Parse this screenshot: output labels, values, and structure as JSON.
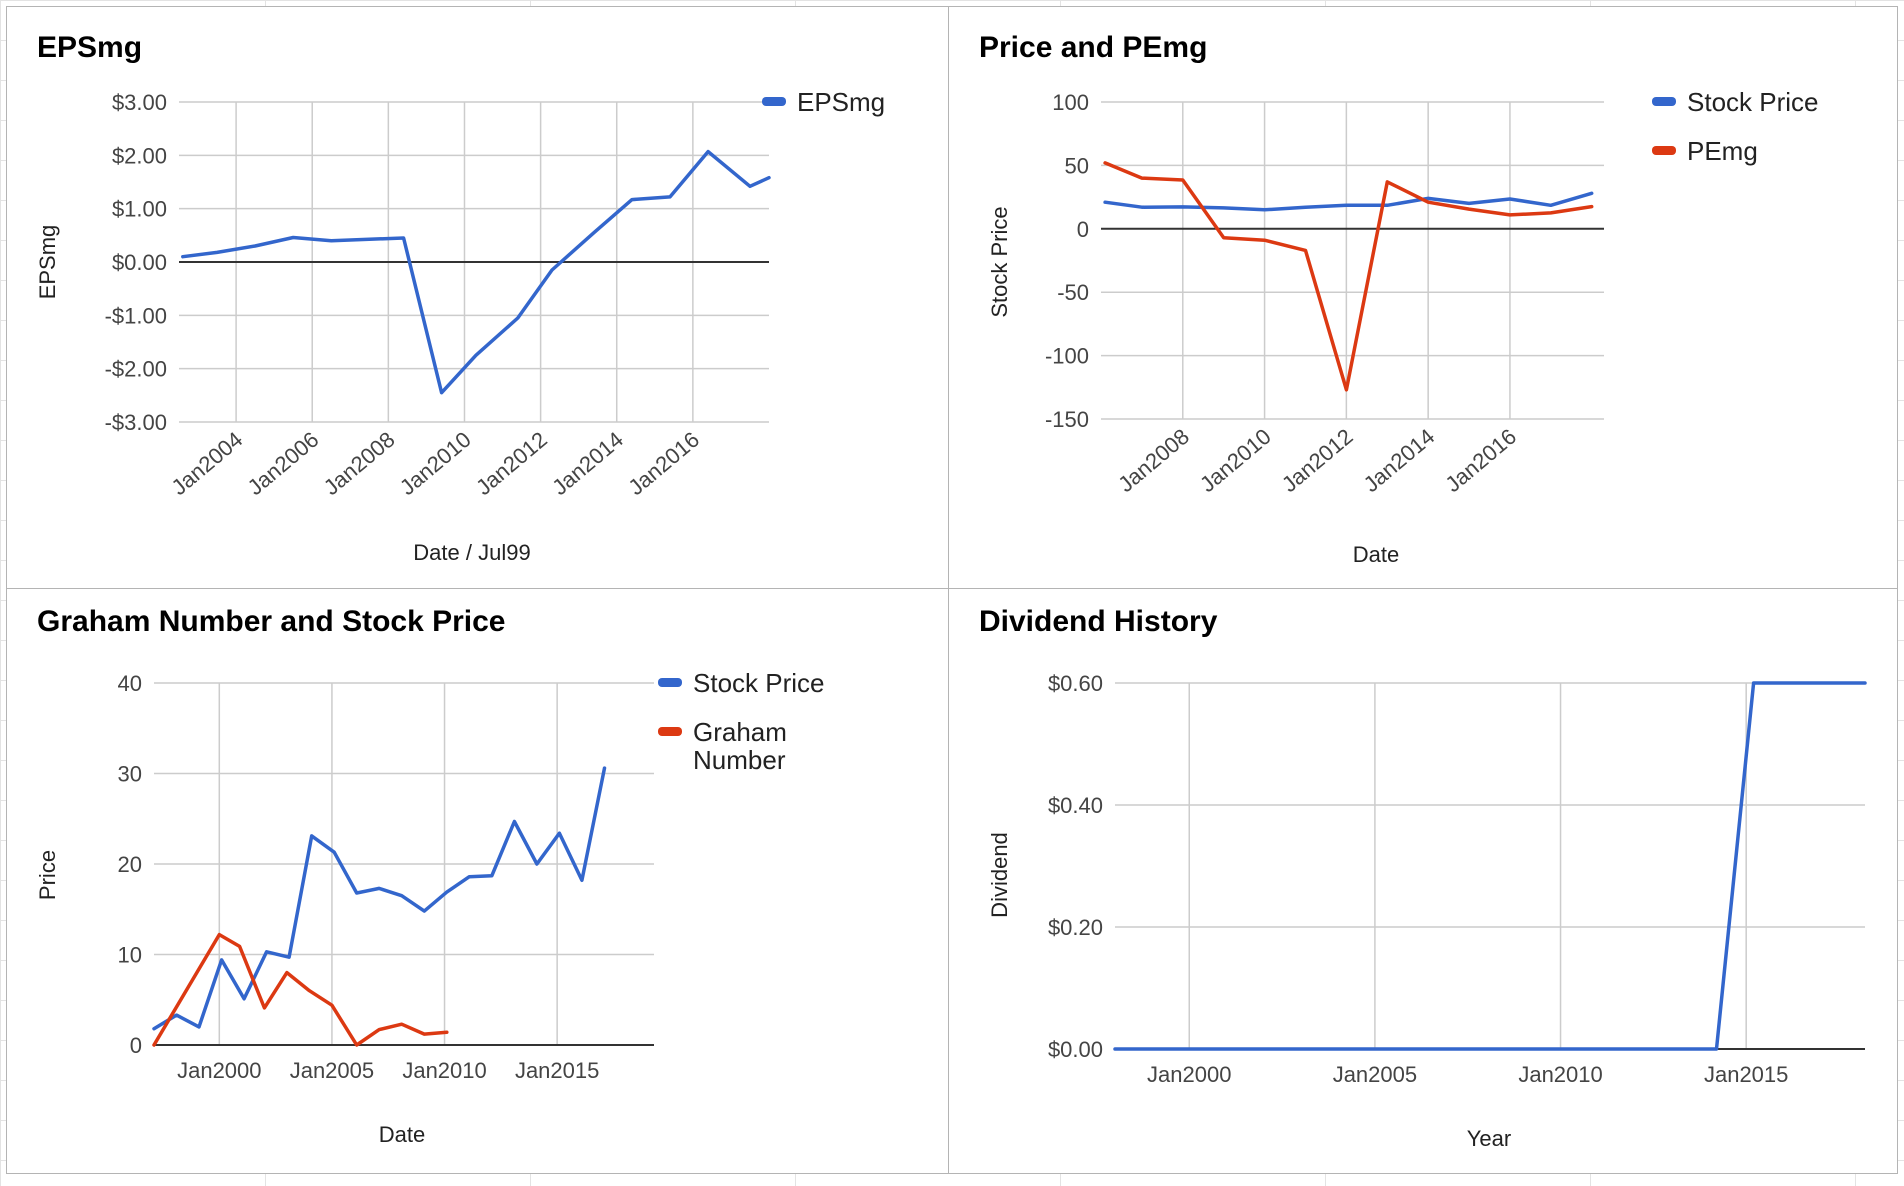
{
  "charts": [
    {
      "title": "EPSmg",
      "chart_data": {
        "type": "line",
        "title": "EPSmg",
        "xlabel": "Date / Jul99",
        "ylabel": "EPSmg",
        "x_ticks": [
          "Jan2004",
          "Jan2006",
          "Jan2008",
          "Jan2010",
          "Jan2012",
          "Jan2014",
          "Jan2016"
        ],
        "y_ticks": [
          "-$3.00",
          "-$2.00",
          "-$1.00",
          "$0.00",
          "$1.00",
          "$2.00",
          "$3.00"
        ],
        "ylim": [
          -3,
          3
        ],
        "xlim": [
          2002.5,
          2018
        ],
        "grid": true,
        "legend_position": "right",
        "series": [
          {
            "name": "EPSmg",
            "color": "#3366cc",
            "points": [
              [
                2002.6,
                0.1
              ],
              [
                2003.5,
                0.18
              ],
              [
                2004.5,
                0.3
              ],
              [
                2005.5,
                0.46
              ],
              [
                2006.5,
                0.4
              ],
              [
                2008.4,
                0.45
              ],
              [
                2009.4,
                -2.45
              ],
              [
                2010.3,
                -1.75
              ],
              [
                2011.4,
                -1.05
              ],
              [
                2012.3,
                -0.15
              ],
              [
                2013.4,
                0.55
              ],
              [
                2014.4,
                1.17
              ],
              [
                2015.4,
                1.22
              ],
              [
                2016.4,
                2.07
              ],
              [
                2017.5,
                1.42
              ],
              [
                2018,
                1.58
              ]
            ]
          }
        ]
      }
    },
    {
      "title": "Price and PEmg",
      "chart_data": {
        "type": "line",
        "title": "Price and PEmg",
        "xlabel": "Date",
        "ylabel": "Stock Price",
        "x_ticks": [
          "Jan2008",
          "Jan2010",
          "Jan2012",
          "Jan2014",
          "Jan2016"
        ],
        "y_ticks": [
          "-150",
          "-100",
          "-50",
          "0",
          "50",
          "100"
        ],
        "ylim": [
          -150,
          100
        ],
        "xlim": [
          2006,
          2018.3
        ],
        "grid": true,
        "legend_position": "right",
        "series": [
          {
            "name": "Stock Price",
            "color": "#3366cc",
            "points": [
              [
                2006.1,
                21
              ],
              [
                2007.0,
                17
              ],
              [
                2008.0,
                17.3
              ],
              [
                2009.0,
                16.5
              ],
              [
                2010.0,
                15
              ],
              [
                2011.0,
                17
              ],
              [
                2012.0,
                18.5
              ],
              [
                2013.0,
                18.5
              ],
              [
                2014.0,
                24
              ],
              [
                2015.0,
                20
              ],
              [
                2016.0,
                23.5
              ],
              [
                2017.0,
                18.5
              ],
              [
                2018.0,
                28
              ]
            ]
          },
          {
            "name": "PEmg",
            "color": "#dc3912",
            "points": [
              [
                2006.1,
                52
              ],
              [
                2007.0,
                40
              ],
              [
                2008.0,
                38.5
              ],
              [
                2009.0,
                -7
              ],
              [
                2010.0,
                -9
              ],
              [
                2011.0,
                -17
              ],
              [
                2012.0,
                -127
              ],
              [
                2013.0,
                37
              ],
              [
                2014.0,
                21
              ],
              [
                2015.0,
                15.5
              ],
              [
                2016.0,
                11
              ],
              [
                2017.0,
                12.5
              ],
              [
                2018.0,
                17.5
              ]
            ]
          }
        ]
      }
    },
    {
      "title": "Graham Number and Stock Price",
      "chart_data": {
        "type": "line",
        "title": "Graham Number and Stock Price",
        "xlabel": "Date",
        "ylabel": "Price",
        "x_ticks": [
          "Jan2000",
          "Jan2005",
          "Jan2010",
          "Jan2015"
        ],
        "y_ticks": [
          "0",
          "10",
          "20",
          "30",
          "40"
        ],
        "ylim": [
          0,
          40
        ],
        "xlim": [
          1997.1,
          2019.3
        ],
        "grid": true,
        "legend_position": "right",
        "series": [
          {
            "name": "Stock Price",
            "color": "#3366cc",
            "points": [
              [
                1997.1,
                1.8
              ],
              [
                1998.1,
                3.3
              ],
              [
                1999.1,
                2.0
              ],
              [
                2000.1,
                9.4
              ],
              [
                2001.1,
                5.1
              ],
              [
                2002.1,
                10.3
              ],
              [
                2003.1,
                9.7
              ],
              [
                2004.1,
                23.1
              ],
              [
                2005.1,
                21.3
              ],
              [
                2006.1,
                16.8
              ],
              [
                2007.1,
                17.3
              ],
              [
                2008.1,
                16.5
              ],
              [
                2009.1,
                14.8
              ],
              [
                2010.1,
                16.9
              ],
              [
                2011.1,
                18.6
              ],
              [
                2012.1,
                18.7
              ],
              [
                2013.1,
                24.7
              ],
              [
                2014.1,
                20.0
              ],
              [
                2015.1,
                23.4
              ],
              [
                2016.1,
                18.2
              ],
              [
                2017.1,
                30.6
              ]
            ]
          },
          {
            "name": "Graham Number",
            "name_lines": [
              "Graham",
              "Number"
            ],
            "color": "#dc3912",
            "points": [
              [
                1997.1,
                0
              ],
              [
                2000.0,
                12.2
              ],
              [
                2000.9,
                10.9
              ],
              [
                2002.0,
                4.1
              ],
              [
                2003.0,
                8.0
              ],
              [
                2004.0,
                6.0
              ],
              [
                2005.0,
                4.4
              ],
              [
                2006.1,
                0.0
              ],
              [
                2007.1,
                1.7
              ],
              [
                2008.1,
                2.3
              ],
              [
                2009.1,
                1.2
              ],
              [
                2010.1,
                1.4
              ]
            ]
          }
        ]
      }
    },
    {
      "title": "Dividend History",
      "chart_data": {
        "type": "line",
        "title": "Dividend History",
        "xlabel": "Year",
        "ylabel": "Dividend",
        "x_ticks": [
          "Jan2000",
          "Jan2005",
          "Jan2010",
          "Jan2015"
        ],
        "y_ticks": [
          "$0.00",
          "$0.20",
          "$0.40",
          "$0.60"
        ],
        "ylim": [
          0,
          0.6
        ],
        "xlim": [
          1998,
          2018.2
        ],
        "grid": true,
        "legend_position": "none",
        "series": [
          {
            "name": "",
            "color": "#3366cc",
            "points": [
              [
                1998,
                0
              ],
              [
                2014.2,
                0
              ],
              [
                2015.2,
                0.6
              ],
              [
                2018.2,
                0.6
              ]
            ]
          }
        ]
      }
    }
  ]
}
